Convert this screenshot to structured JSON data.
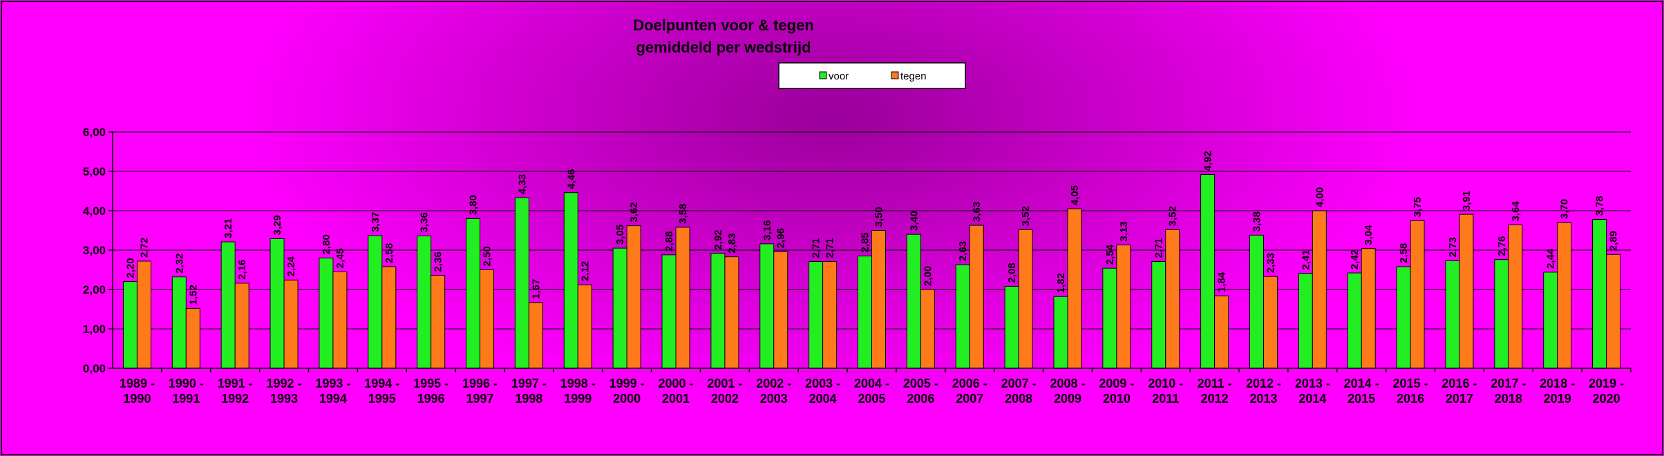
{
  "chart_data": {
    "type": "bar",
    "title_lines": [
      "Doelpunten voor & tegen",
      "gemiddeld per wedstrijd"
    ],
    "categories": [
      [
        "1989 -",
        "1990"
      ],
      [
        "1990 -",
        "1991"
      ],
      [
        "1991 -",
        "1992"
      ],
      [
        "1992 -",
        "1993"
      ],
      [
        "1993 -",
        "1994"
      ],
      [
        "1994 -",
        "1995"
      ],
      [
        "1995 -",
        "1996"
      ],
      [
        "1996 -",
        "1997"
      ],
      [
        "1997 -",
        "1998"
      ],
      [
        "1998 -",
        "1999"
      ],
      [
        "1999 -",
        "2000"
      ],
      [
        "2000 -",
        "2001"
      ],
      [
        "2001 -",
        "2002"
      ],
      [
        "2002 -",
        "2003"
      ],
      [
        "2003 -",
        "2004"
      ],
      [
        "2004 -",
        "2005"
      ],
      [
        "2005 -",
        "2006"
      ],
      [
        "2006 -",
        "2007"
      ],
      [
        "2007 -",
        "2008"
      ],
      [
        "2008 -",
        "2009"
      ],
      [
        "2009 -",
        "2010"
      ],
      [
        "2010 -",
        "2011"
      ],
      [
        "2011 -",
        "2012"
      ],
      [
        "2012 -",
        "2013"
      ],
      [
        "2013 -",
        "2014"
      ],
      [
        "2014 -",
        "2015"
      ],
      [
        "2015 -",
        "2016"
      ],
      [
        "2016 -",
        "2017"
      ],
      [
        "2017 -",
        "2018"
      ],
      [
        "2018 -",
        "2019"
      ],
      [
        "2019 -",
        "2020"
      ]
    ],
    "series": [
      {
        "name": "voor",
        "color": "#22ee22",
        "values": [
          2.2,
          2.32,
          3.21,
          3.29,
          2.8,
          3.37,
          3.36,
          3.8,
          4.33,
          4.46,
          3.05,
          2.88,
          2.92,
          3.16,
          2.71,
          2.85,
          3.4,
          2.63,
          2.08,
          1.82,
          2.54,
          2.71,
          4.92,
          3.38,
          2.41,
          2.42,
          2.58,
          2.73,
          2.76,
          2.44,
          3.78
        ],
        "labels": [
          "2,20",
          "2,32",
          "3,21",
          "3,29",
          "2,80",
          "3,37",
          "3,36",
          "3,80",
          "4,33",
          "4,46",
          "3,05",
          "2,88",
          "2,92",
          "3,16",
          "2,71",
          "2,85",
          "3,40",
          "2,63",
          "2,08",
          "1,82",
          "2,54",
          "2,71",
          "4,92",
          "3,38",
          "2,41",
          "2,42",
          "2,58",
          "2,73",
          "2,76",
          "2,44",
          "3,78"
        ]
      },
      {
        "name": "tegen",
        "color": "#ff7a1a",
        "values": [
          2.72,
          1.52,
          2.16,
          2.24,
          2.45,
          2.58,
          2.36,
          2.5,
          1.67,
          2.12,
          3.62,
          3.58,
          2.83,
          2.96,
          2.71,
          3.5,
          2.0,
          3.63,
          3.52,
          4.05,
          3.13,
          3.52,
          1.84,
          2.33,
          4.0,
          3.04,
          3.75,
          3.91,
          3.64,
          3.7,
          2.89
        ],
        "labels": [
          "2,72",
          "1,52",
          "2,16",
          "2,24",
          "2,45",
          "2,58",
          "2,36",
          "2,50",
          "1,67",
          "2,12",
          "3,62",
          "3,58",
          "2,83",
          "2,96",
          "2,71",
          "3,50",
          "2,00",
          "3,63",
          "3,52",
          "4,05",
          "3,13",
          "3,52",
          "1,84",
          "2,33",
          "4,00",
          "3,04",
          "3,75",
          "3,91",
          "3,64",
          "3,70",
          "2,89"
        ]
      }
    ],
    "ylim": [
      0,
      6
    ],
    "yticks": [
      "0,00",
      "1,00",
      "2,00",
      "3,00",
      "4,00",
      "5,00",
      "6,00"
    ],
    "grid": true,
    "legend_position": "top-center",
    "background": {
      "center": "#990099",
      "edge": "#ff00ff"
    }
  }
}
